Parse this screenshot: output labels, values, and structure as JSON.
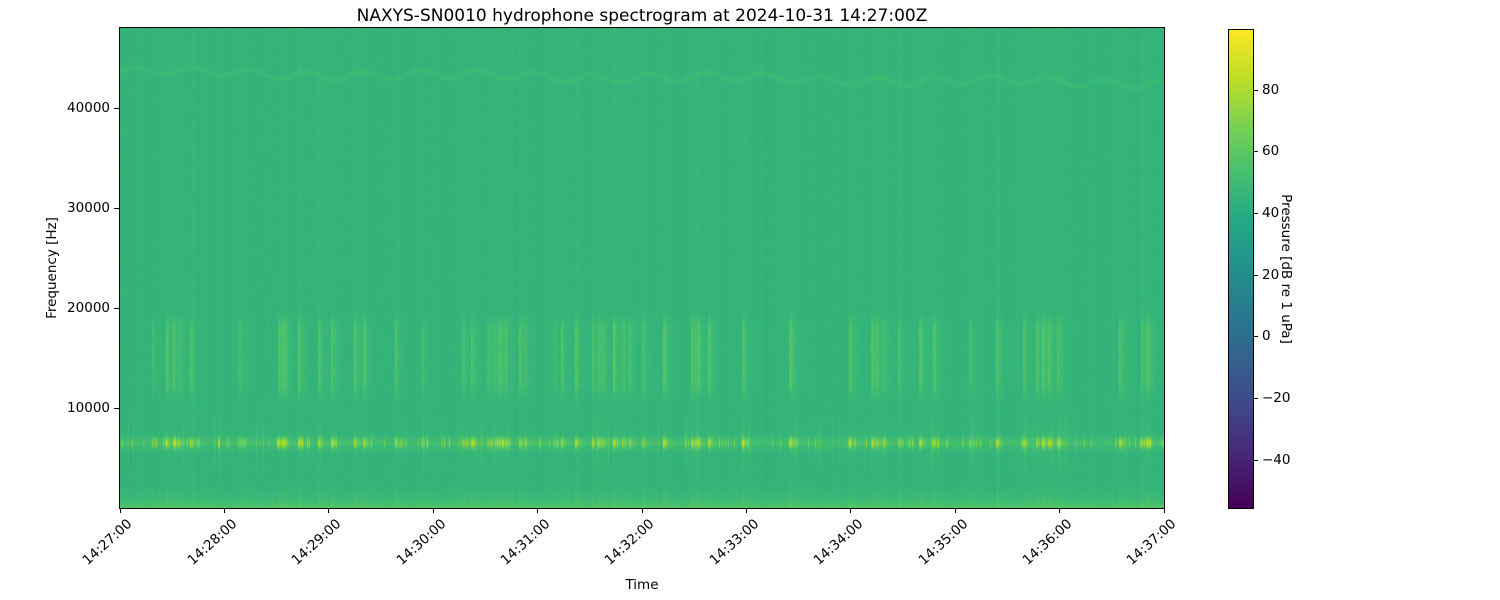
{
  "figure": {
    "background_color": "#ffffff",
    "text_color": "#000000"
  },
  "chart_data": {
    "type": "heatmap",
    "subtype": "spectrogram",
    "title": "NAXYS-SN0010 hydrophone spectrogram at 2024-10-31 14:27:00Z",
    "xlabel": "Time",
    "ylabel": "Frequency [Hz]",
    "x_tick_labels": [
      "14:27:00",
      "14:28:00",
      "14:29:00",
      "14:30:00",
      "14:31:00",
      "14:32:00",
      "14:33:00",
      "14:34:00",
      "14:35:00",
      "14:36:00",
      "14:37:00"
    ],
    "x_range": [
      "14:27:00",
      "14:37:00"
    ],
    "x_span_seconds": 600,
    "y_tick_labels": [
      "10000",
      "20000",
      "30000",
      "40000"
    ],
    "y_ticks_hz": [
      10000,
      20000,
      30000,
      40000
    ],
    "y_range_hz": [
      0,
      48000
    ],
    "grid": false,
    "legend": null,
    "colorbar": {
      "label": "Pressure [dB re 1 uPa]",
      "tick_labels": [
        "80",
        "60",
        "40",
        "20",
        "0",
        "−20",
        "−40"
      ],
      "ticks_db": [
        80,
        60,
        40,
        20,
        0,
        -20,
        -40
      ],
      "vmin_db": -55.5,
      "vmax_db": 99.5,
      "colormap": "viridis",
      "colormap_stops": [
        "#440154",
        "#482475",
        "#414487",
        "#355f8d",
        "#2a788e",
        "#21918c",
        "#22a884",
        "#44bf70",
        "#7ad151",
        "#bddf26",
        "#fde725"
      ],
      "position": "right"
    },
    "content": {
      "background_level_db": 45.5,
      "base_color_hex": "#2db27d",
      "bright_blip_color_hex": "#b2dd2d",
      "features": [
        {
          "name": "tonal-band",
          "center_freq_hz": 6500,
          "bandwidth_hz": 800,
          "peak_level_db": 82,
          "pattern": "bright dashed blips with occasional vertical spikes"
        },
        {
          "name": "broadband-band",
          "freq_low_hz": 12500,
          "freq_high_hz": 18000,
          "peak_level_db": 62,
          "pattern": "dense vertical striations in bursts"
        },
        {
          "name": "faint-wavy-line",
          "center_freq_hz": 43500,
          "drift_hz": -1200,
          "level_db": 49,
          "pattern": "thin zigzag line near top edge"
        },
        {
          "name": "low-frequency-energy",
          "freq_low_hz": 0,
          "freq_high_hz": 2600,
          "level_db": 57,
          "pattern": "brighter gradient toward bottom edge"
        },
        {
          "name": "broadband-impulses",
          "freq_low_hz": 0,
          "freq_high_hz": 48000,
          "level_db_range": [
            44,
            60
          ],
          "pattern": "faint full-height vertical striations"
        }
      ]
    }
  }
}
